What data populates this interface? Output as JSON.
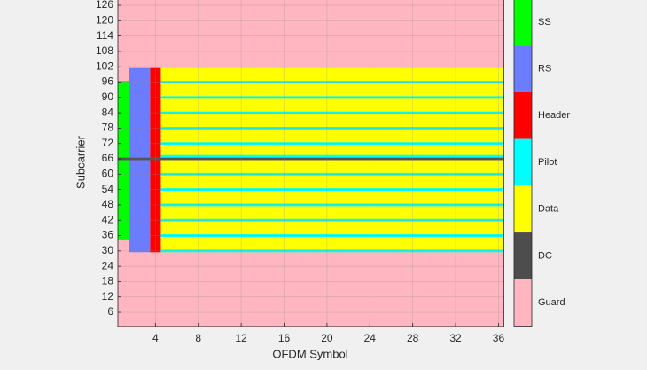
{
  "chart_data": {
    "type": "resource-grid",
    "xlabel": "OFDM Symbol",
    "ylabel": "Subcarrier",
    "xlim": [
      0.5,
      36.5
    ],
    "ylim": [
      0.5,
      128.5
    ],
    "xticks": [
      4,
      8,
      12,
      16,
      20,
      24,
      28,
      32,
      36
    ],
    "yticks": [
      6,
      12,
      18,
      24,
      30,
      36,
      42,
      48,
      54,
      60,
      66,
      72,
      78,
      84,
      90,
      96,
      102,
      108,
      114,
      120,
      126
    ],
    "grid": true,
    "series": [
      {
        "name": "SS",
        "color": "#00ff00",
        "x": [
          1,
          1
        ],
        "y": [
          [
            35,
            65
          ],
          [
            67,
            96
          ]
        ]
      },
      {
        "name": "RS",
        "color": "#6b7cff",
        "x": [
          2,
          3
        ],
        "y": [
          [
            30,
            65
          ],
          [
            67,
            101
          ]
        ]
      },
      {
        "name": "Header",
        "color": "#ff0000",
        "x": [
          4,
          4
        ],
        "y": [
          [
            30,
            65
          ],
          [
            67,
            101
          ]
        ]
      },
      {
        "name": "Pilot",
        "color": "#00ffff",
        "x": [
          5,
          36
        ],
        "y": [
          [
            30,
            30
          ],
          [
            36,
            36
          ],
          [
            42,
            42
          ],
          [
            48,
            48
          ],
          [
            54,
            54
          ],
          [
            60,
            60
          ],
          [
            67,
            67
          ],
          [
            72,
            72
          ],
          [
            78,
            78
          ],
          [
            84,
            84
          ],
          [
            90,
            90
          ],
          [
            96,
            96
          ]
        ]
      },
      {
        "name": "Data",
        "color": "#ffff00",
        "x": [
          5,
          36
        ],
        "y": [
          [
            30,
            65
          ],
          [
            67,
            101
          ]
        ]
      },
      {
        "name": "DC",
        "color": "#4d4d4d",
        "x": [
          1,
          36
        ],
        "y": [
          [
            66,
            66
          ]
        ]
      },
      {
        "name": "Guard",
        "color": "#ffb6c1",
        "x": [
          1,
          36
        ],
        "y": [
          [
            1,
            128
          ]
        ]
      }
    ]
  }
}
